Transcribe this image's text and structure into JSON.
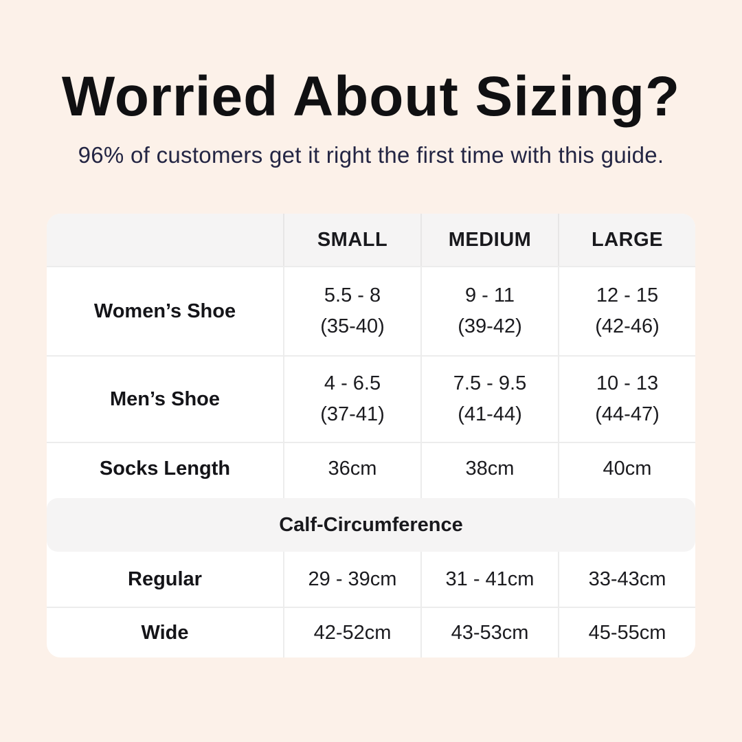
{
  "page": {
    "title": "Worried About Sizing?",
    "subtitle": "96% of customers get it right the first time with this guide.",
    "colors": {
      "background": "#fcf1e9",
      "card": "#ffffff",
      "band": "#f5f4f4",
      "title_text": "#101012",
      "subtitle_text": "#232543",
      "body_text": "#1b1b1f",
      "divider": "#ececec"
    }
  },
  "table": {
    "column_headers": [
      "",
      "SMALL",
      "MEDIUM",
      "LARGE"
    ],
    "rows": [
      {
        "label": "Women’s Shoe",
        "cells": [
          {
            "line1": "5.5 - 8",
            "line2": "(35-40)"
          },
          {
            "line1": "9 - 11",
            "line2": "(39-42)"
          },
          {
            "line1": "12 - 15",
            "line2": "(42-46)"
          }
        ]
      },
      {
        "label": "Men’s Shoe",
        "cells": [
          {
            "line1": "4 - 6.5",
            "line2": "(37-41)"
          },
          {
            "line1": "7.5 - 9.5",
            "line2": "(41-44)"
          },
          {
            "line1": "10 - 13",
            "line2": "(44-47)"
          }
        ]
      },
      {
        "label": "Socks Length",
        "cells": [
          {
            "line1": "36cm"
          },
          {
            "line1": "38cm"
          },
          {
            "line1": "40cm"
          }
        ]
      }
    ],
    "section_header": "Calf-Circumference",
    "calf_rows": [
      {
        "label": "Regular",
        "cells": [
          {
            "line1": "29 - 39cm"
          },
          {
            "line1": "31 - 41cm"
          },
          {
            "line1": "33-43cm"
          }
        ]
      },
      {
        "label": "Wide",
        "cells": [
          {
            "line1": "42-52cm"
          },
          {
            "line1": "43-53cm"
          },
          {
            "line1": "45-55cm"
          }
        ]
      }
    ]
  },
  "chart_data": {
    "type": "table",
    "title": "Worried About Sizing?",
    "subtitle": "96% of customers get it right the first time with this guide.",
    "columns": [
      "",
      "SMALL",
      "MEDIUM",
      "LARGE"
    ],
    "rows": [
      [
        "Women’s Shoe",
        "5.5 - 8 (35-40)",
        "9 - 11 (39-42)",
        "12 - 15 (42-46)"
      ],
      [
        "Men’s Shoe",
        "4 - 6.5 (37-41)",
        "7.5 - 9.5 (41-44)",
        "10 - 13 (44-47)"
      ],
      [
        "Socks Length",
        "36cm",
        "38cm",
        "40cm"
      ],
      [
        "Calf-Circumference (section header, spans all columns)",
        "",
        "",
        ""
      ],
      [
        "Regular",
        "29 - 39cm",
        "31 - 41cm",
        "33-43cm"
      ],
      [
        "Wide",
        "42-52cm",
        "43-53cm",
        "45-55cm"
      ]
    ]
  }
}
